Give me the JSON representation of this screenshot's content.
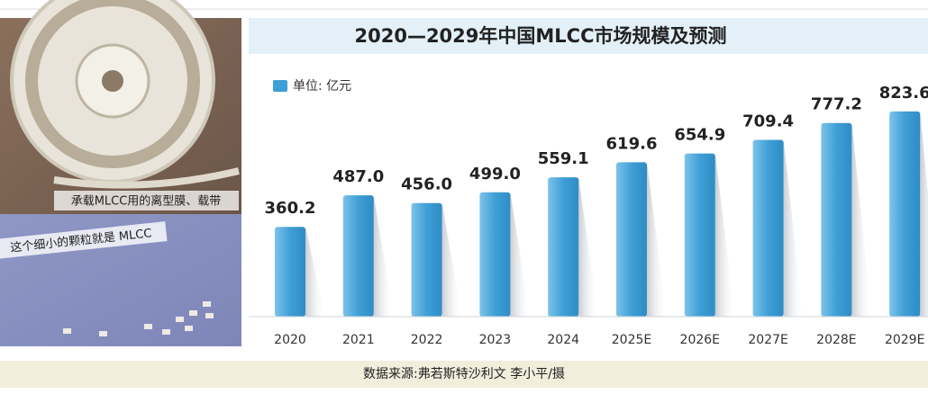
{
  "chart_data": {
    "type": "bar",
    "title": "2020—2029年中国MLCC市场规模及预测",
    "categories": [
      "2020",
      "2021",
      "2022",
      "2023",
      "2024",
      "2025E",
      "2026E",
      "2027E",
      "2028E",
      "2029E"
    ],
    "series": [
      {
        "name": "单位: 亿元",
        "color": "#3f9fd6",
        "values": [
          360.2,
          487.0,
          456.0,
          499.0,
          559.1,
          619.6,
          654.9,
          709.4,
          777.2,
          823.6
        ],
        "value_labels": [
          "360.2",
          "487.0",
          "456.0",
          "499.0",
          "559.1",
          "619.6",
          "654.9",
          "709.4",
          "777.2",
          "823.6"
        ]
      }
    ]
  },
  "photos": [
    {
      "caption": "承载MLCC用的离型膜、载带"
    },
    {
      "caption": "这个细小的颗粒就是 MLCC"
    }
  ],
  "source": "数据来源:弗若斯特沙利文 李小平/摄"
}
